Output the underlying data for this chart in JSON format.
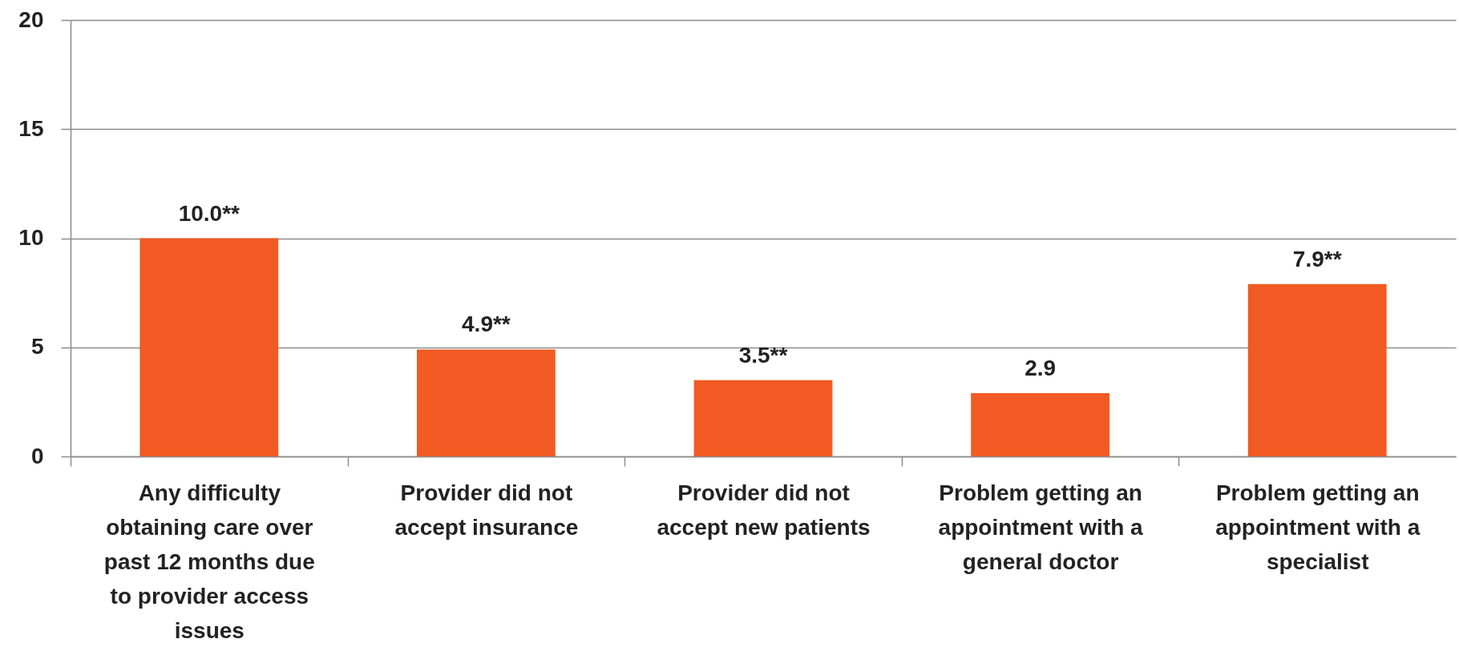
{
  "chart_data": {
    "type": "bar",
    "categories": [
      "Any difficulty obtaining care over past 12 months due to provider access issues",
      "Provider did not accept insurance",
      "Provider did not accept new patients",
      "Problem getting an appointment with a general doctor",
      "Problem getting an appointment with a specialist"
    ],
    "values": [
      10.0,
      4.9,
      3.5,
      2.9,
      7.9
    ],
    "value_labels": [
      "10.0**",
      "4.9**",
      "3.5**",
      "2.9",
      "7.9**"
    ],
    "color": "#f15a22",
    "ylim": [
      0,
      20
    ],
    "yticks": [
      0,
      5,
      10,
      15,
      20
    ],
    "grid": "y"
  }
}
